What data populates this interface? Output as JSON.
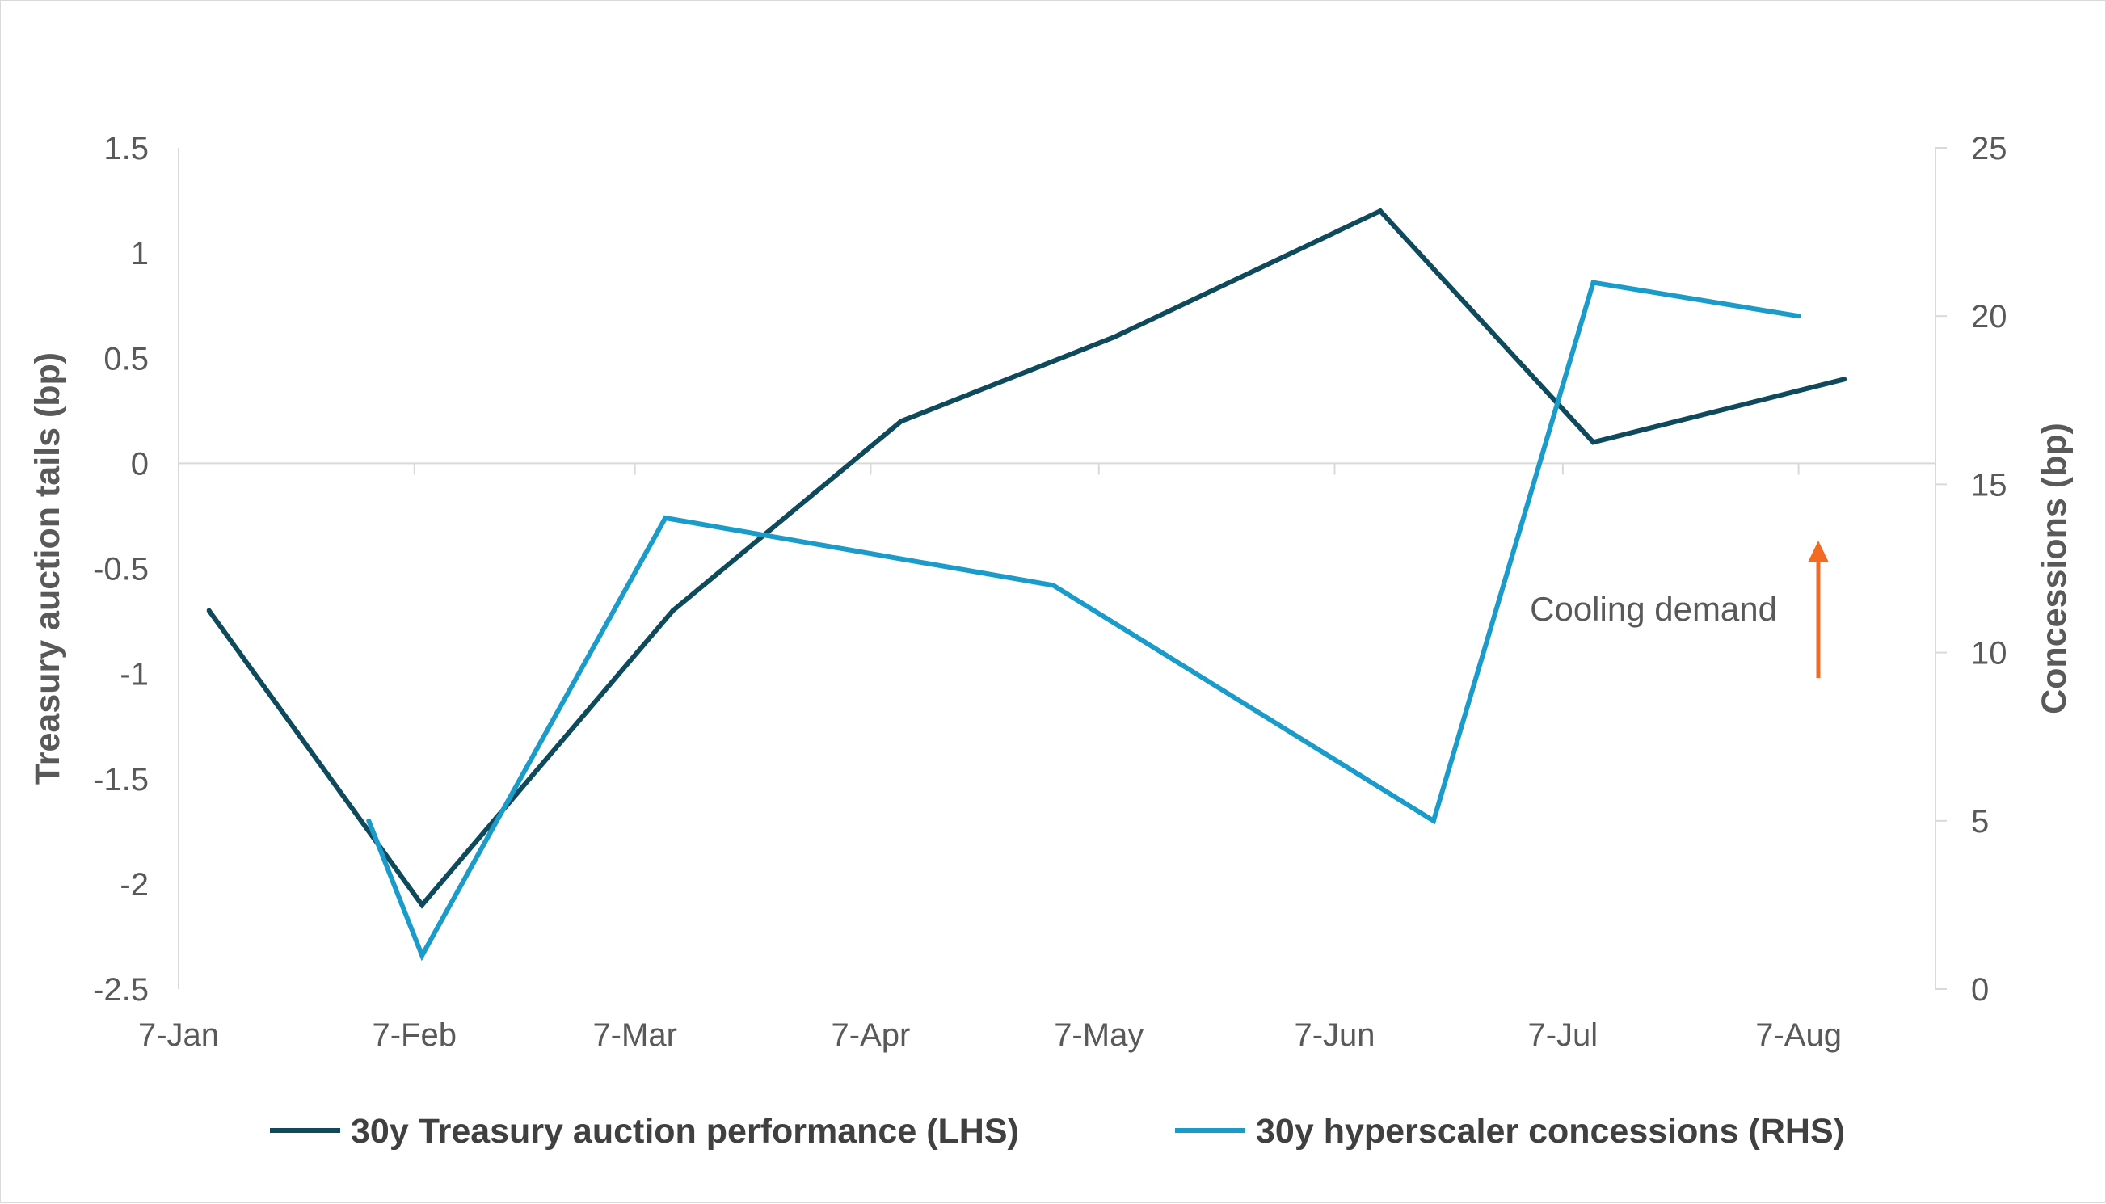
{
  "chart_data": {
    "type": "line",
    "x_ticks": [
      "7-Jan",
      "7-Feb",
      "7-Mar",
      "7-Apr",
      "7-May",
      "7-Jun",
      "7-Jul",
      "7-Aug"
    ],
    "y_left": {
      "label": "Treasury auction tails (bp)",
      "range": [
        -2.5,
        1.5
      ],
      "ticks": [
        "1.5",
        "1",
        "0.5",
        "0",
        "-0.5",
        "-1",
        "-1.5",
        "-2",
        "-2.5"
      ]
    },
    "y_right": {
      "label": "Concessions (bp)",
      "range": [
        0,
        25
      ],
      "ticks": [
        "25",
        "20",
        "15",
        "10",
        "5",
        "0"
      ]
    },
    "x_range": [
      "2024-01-07",
      "2024-08-25"
    ],
    "series": [
      {
        "name": "30y Treasury auction performance (LHS)",
        "axis": "left",
        "color": "#0e4a5c",
        "points": [
          {
            "x": "2024-01-11",
            "y": -0.7
          },
          {
            "x": "2024-02-08",
            "y": -2.1
          },
          {
            "x": "2024-03-12",
            "y": -0.7
          },
          {
            "x": "2024-04-11",
            "y": 0.2
          },
          {
            "x": "2024-05-09",
            "y": 0.6
          },
          {
            "x": "2024-06-13",
            "y": 1.2
          },
          {
            "x": "2024-07-11",
            "y": 0.1
          },
          {
            "x": "2024-08-13",
            "y": 0.4
          }
        ]
      },
      {
        "name": "30y hyperscaler concessions (RHS)",
        "axis": "right",
        "color": "#1a9bc9",
        "points": [
          {
            "x": "2024-02-01",
            "y": 5
          },
          {
            "x": "2024-02-08",
            "y": 1
          },
          {
            "x": "2024-03-11",
            "y": 14
          },
          {
            "x": "2024-05-01",
            "y": 12
          },
          {
            "x": "2024-06-20",
            "y": 5
          },
          {
            "x": "2024-07-11",
            "y": 21
          },
          {
            "x": "2024-08-07",
            "y": 20
          }
        ]
      }
    ],
    "annotation": {
      "text": "Cooling demand",
      "arrow_color": "#f26b21"
    }
  }
}
